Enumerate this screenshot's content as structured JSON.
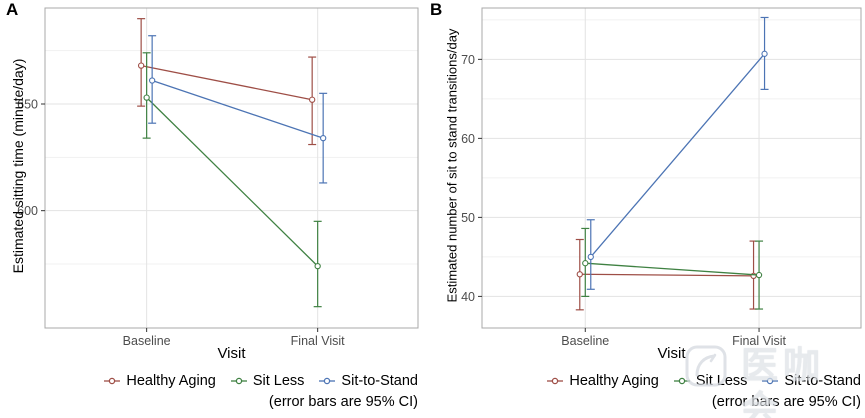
{
  "watermark": {
    "text": "医咖会"
  },
  "chart_data": [
    {
      "type": "line",
      "panel_label": "A",
      "xlabel": "Visit",
      "ylabel": "Estimated sitting time (minute/day)",
      "categories": [
        "Baseline",
        "Final Visit"
      ],
      "ylim": [
        545,
        695
      ],
      "yticks": [
        600,
        650
      ],
      "yticks_minor": [
        575,
        625,
        675
      ],
      "grid": true,
      "legend_position": "bottom",
      "legend_note": "(error bars are 95% CI)",
      "series": [
        {
          "name": "Healthy Aging",
          "color": "#9E4E46",
          "values": [
            668,
            652
          ],
          "ci_low": [
            649,
            631
          ],
          "ci_high": [
            690,
            672
          ]
        },
        {
          "name": "Sit Less",
          "color": "#3F8142",
          "values": [
            653,
            574
          ],
          "ci_low": [
            634,
            555
          ],
          "ci_high": [
            674,
            595
          ]
        },
        {
          "name": "Sit-to-Stand",
          "color": "#4C74B4",
          "values": [
            661,
            634
          ],
          "ci_low": [
            641,
            613
          ],
          "ci_high": [
            682,
            655
          ]
        }
      ]
    },
    {
      "type": "line",
      "panel_label": "B",
      "xlabel": "Visit",
      "ylabel": "Estimated number of sit to stand transitions/day",
      "categories": [
        "Baseline",
        "Final Visit"
      ],
      "ylim": [
        36,
        76.5
      ],
      "yticks": [
        40,
        50,
        60,
        70
      ],
      "yticks_minor": [
        45,
        55,
        65,
        75
      ],
      "grid": true,
      "legend_position": "bottom",
      "legend_note": "(error bars are 95% CI)",
      "series": [
        {
          "name": "Healthy Aging",
          "color": "#9E4E46",
          "values": [
            42.8,
            42.6
          ],
          "ci_low": [
            38.3,
            38.4
          ],
          "ci_high": [
            47.2,
            47.0
          ]
        },
        {
          "name": "Sit Less",
          "color": "#3F8142",
          "values": [
            44.2,
            42.7
          ],
          "ci_low": [
            40.0,
            38.4
          ],
          "ci_high": [
            48.6,
            47.0
          ]
        },
        {
          "name": "Sit-to-Stand",
          "color": "#4C74B4",
          "values": [
            45.0,
            70.7
          ],
          "ci_low": [
            40.9,
            66.2
          ],
          "ci_high": [
            49.7,
            75.3
          ]
        }
      ]
    }
  ]
}
